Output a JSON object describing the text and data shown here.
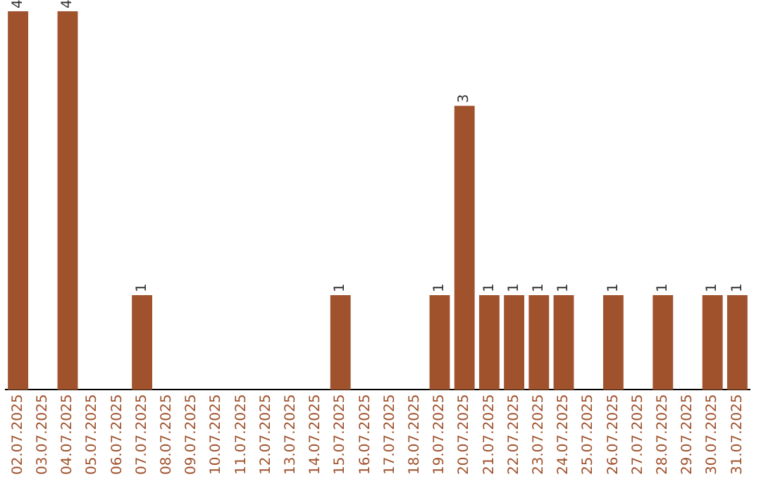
{
  "chart_data": {
    "type": "bar",
    "categories": [
      "02.07.2025",
      "03.07.2025",
      "04.07.2025",
      "05.07.2025",
      "06.07.2025",
      "07.07.2025",
      "08.07.2025",
      "09.07.2025",
      "10.07.2025",
      "11.07.2025",
      "12.07.2025",
      "13.07.2025",
      "14.07.2025",
      "15.07.2025",
      "16.07.2025",
      "17.07.2025",
      "18.07.2025",
      "19.07.2025",
      "20.07.2025",
      "21.07.2025",
      "22.07.2025",
      "23.07.2025",
      "24.07.2025",
      "25.07.2025",
      "26.07.2025",
      "27.07.2025",
      "28.07.2025",
      "29.07.2025",
      "30.07.2025",
      "31.07.2025"
    ],
    "values": [
      4,
      0,
      4,
      0,
      0,
      1,
      0,
      0,
      0,
      0,
      0,
      0,
      0,
      1,
      0,
      0,
      0,
      1,
      3,
      1,
      1,
      1,
      1,
      0,
      1,
      0,
      1,
      0,
      1,
      1
    ],
    "value_labels": [
      "4",
      null,
      "4",
      null,
      null,
      "1",
      null,
      null,
      null,
      null,
      null,
      null,
      null,
      "1",
      null,
      null,
      null,
      "1",
      "3",
      "1",
      "1",
      "1",
      "1",
      null,
      "1",
      null,
      "1",
      null,
      "1",
      "1"
    ],
    "color": "#a0522d",
    "grid": false,
    "legend": false,
    "tick_labels": "x"
  }
}
